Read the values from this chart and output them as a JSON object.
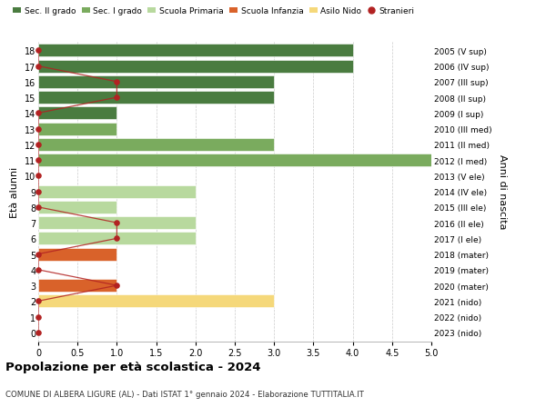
{
  "ages": [
    18,
    17,
    16,
    15,
    14,
    13,
    12,
    11,
    10,
    9,
    8,
    7,
    6,
    5,
    4,
    3,
    2,
    1,
    0
  ],
  "right_labels": [
    "2005 (V sup)",
    "2006 (IV sup)",
    "2007 (III sup)",
    "2008 (II sup)",
    "2009 (I sup)",
    "2010 (III med)",
    "2011 (II med)",
    "2012 (I med)",
    "2013 (V ele)",
    "2014 (IV ele)",
    "2015 (III ele)",
    "2016 (II ele)",
    "2017 (I ele)",
    "2018 (mater)",
    "2019 (mater)",
    "2020 (mater)",
    "2021 (nido)",
    "2022 (nido)",
    "2023 (nido)"
  ],
  "bar_values": [
    4,
    4,
    3,
    3,
    1,
    1,
    3,
    5,
    0,
    2,
    1,
    2,
    2,
    1,
    0,
    1,
    3,
    0,
    0
  ],
  "bar_colors": [
    "#4a7c40",
    "#4a7c40",
    "#4a7c40",
    "#4a7c40",
    "#4a7c40",
    "#7aab5e",
    "#7aab5e",
    "#7aab5e",
    "#b8d99e",
    "#b8d99e",
    "#b8d99e",
    "#b8d99e",
    "#b8d99e",
    "#d9622a",
    "#d9622a",
    "#d9622a",
    "#f5d87a",
    "#f5d87a",
    "#f5d87a"
  ],
  "stranieri_values": [
    0,
    0,
    1,
    1,
    0,
    0,
    0,
    0,
    0,
    0,
    0,
    1,
    1,
    0,
    0,
    1,
    0,
    0,
    0
  ],
  "stranieri_color": "#b22222",
  "xlim": [
    0,
    5.0
  ],
  "xticks": [
    0,
    0.5,
    1.0,
    1.5,
    2.0,
    2.5,
    3.0,
    3.5,
    4.0,
    4.5,
    5.0
  ],
  "xtick_labels": [
    "0",
    "0.5",
    "1.0",
    "1.5",
    "2.0",
    "2.5",
    "3.0",
    "3.5",
    "4.0",
    "4.5",
    "5.0"
  ],
  "ylabel_left": "Età alunni",
  "ylabel_right": "Anni di nascita",
  "title": "Popolazione per età scolastica - 2024",
  "subtitle": "COMUNE DI ALBERA LIGURE (AL) - Dati ISTAT 1° gennaio 2024 - Elaborazione TUTTITALIA.IT",
  "legend_labels": [
    "Sec. II grado",
    "Sec. I grado",
    "Scuola Primaria",
    "Scuola Infanzia",
    "Asilo Nido",
    "Stranieri"
  ],
  "legend_colors": [
    "#4a7c40",
    "#7aab5e",
    "#b8d99e",
    "#d9622a",
    "#f5d87a",
    "#b22222"
  ],
  "background_color": "#ffffff",
  "grid_color": "#cccccc"
}
